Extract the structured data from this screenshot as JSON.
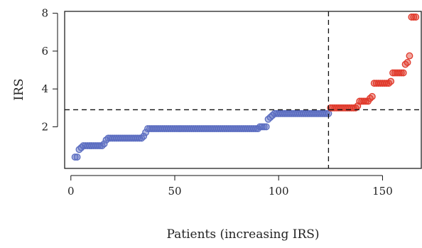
{
  "chart_data": {
    "type": "scatter",
    "xlabel": "Patients (increasing IRS)",
    "ylabel": "IRS",
    "xlim": [
      -3,
      169
    ],
    "ylim": [
      -0.2,
      8.1
    ],
    "x_ticks": [
      0,
      50,
      100,
      150
    ],
    "y_ticks": [
      2,
      4,
      6,
      8
    ],
    "grid": false,
    "threshold_x": 124,
    "threshold_y": 2.9,
    "colors": {
      "low": "#5a6cc0",
      "high": "#e0392b",
      "threshold": "#111111"
    },
    "series": [
      {
        "group": "low",
        "steps": [
          {
            "x_from": 2,
            "x_to": 3,
            "y": 0.4
          },
          {
            "x_from": 4,
            "x_to": 4,
            "y": 0.8
          },
          {
            "x_from": 5,
            "x_to": 5,
            "y": 0.9
          },
          {
            "x_from": 6,
            "x_to": 15,
            "y": 1.0
          },
          {
            "x_from": 16,
            "x_to": 16,
            "y": 1.1
          },
          {
            "x_from": 17,
            "x_to": 17,
            "y": 1.3
          },
          {
            "x_from": 18,
            "x_to": 34,
            "y": 1.4
          },
          {
            "x_from": 35,
            "x_to": 35,
            "y": 1.5
          },
          {
            "x_from": 36,
            "x_to": 36,
            "y": 1.7
          },
          {
            "x_from": 37,
            "x_to": 90,
            "y": 1.9
          },
          {
            "x_from": 91,
            "x_to": 94,
            "y": 2.0
          },
          {
            "x_from": 95,
            "x_to": 95,
            "y": 2.4
          },
          {
            "x_from": 96,
            "x_to": 96,
            "y": 2.5
          },
          {
            "x_from": 97,
            "x_to": 97,
            "y": 2.6
          },
          {
            "x_from": 98,
            "x_to": 124,
            "y": 2.7
          }
        ]
      },
      {
        "group": "high",
        "steps": [
          {
            "x_from": 125,
            "x_to": 137,
            "y": 3.0
          },
          {
            "x_from": 138,
            "x_to": 138,
            "y": 3.1
          },
          {
            "x_from": 139,
            "x_to": 143,
            "y": 3.35
          },
          {
            "x_from": 144,
            "x_to": 144,
            "y": 3.5
          },
          {
            "x_from": 145,
            "x_to": 145,
            "y": 3.6
          },
          {
            "x_from": 146,
            "x_to": 153,
            "y": 4.3
          },
          {
            "x_from": 154,
            "x_to": 154,
            "y": 4.4
          },
          {
            "x_from": 155,
            "x_to": 160,
            "y": 4.85
          },
          {
            "x_from": 161,
            "x_to": 161,
            "y": 5.3
          },
          {
            "x_from": 162,
            "x_to": 162,
            "y": 5.4
          },
          {
            "x_from": 163,
            "x_to": 163,
            "y": 5.75
          },
          {
            "x_from": 164,
            "x_to": 166,
            "y": 7.8
          }
        ]
      }
    ]
  }
}
